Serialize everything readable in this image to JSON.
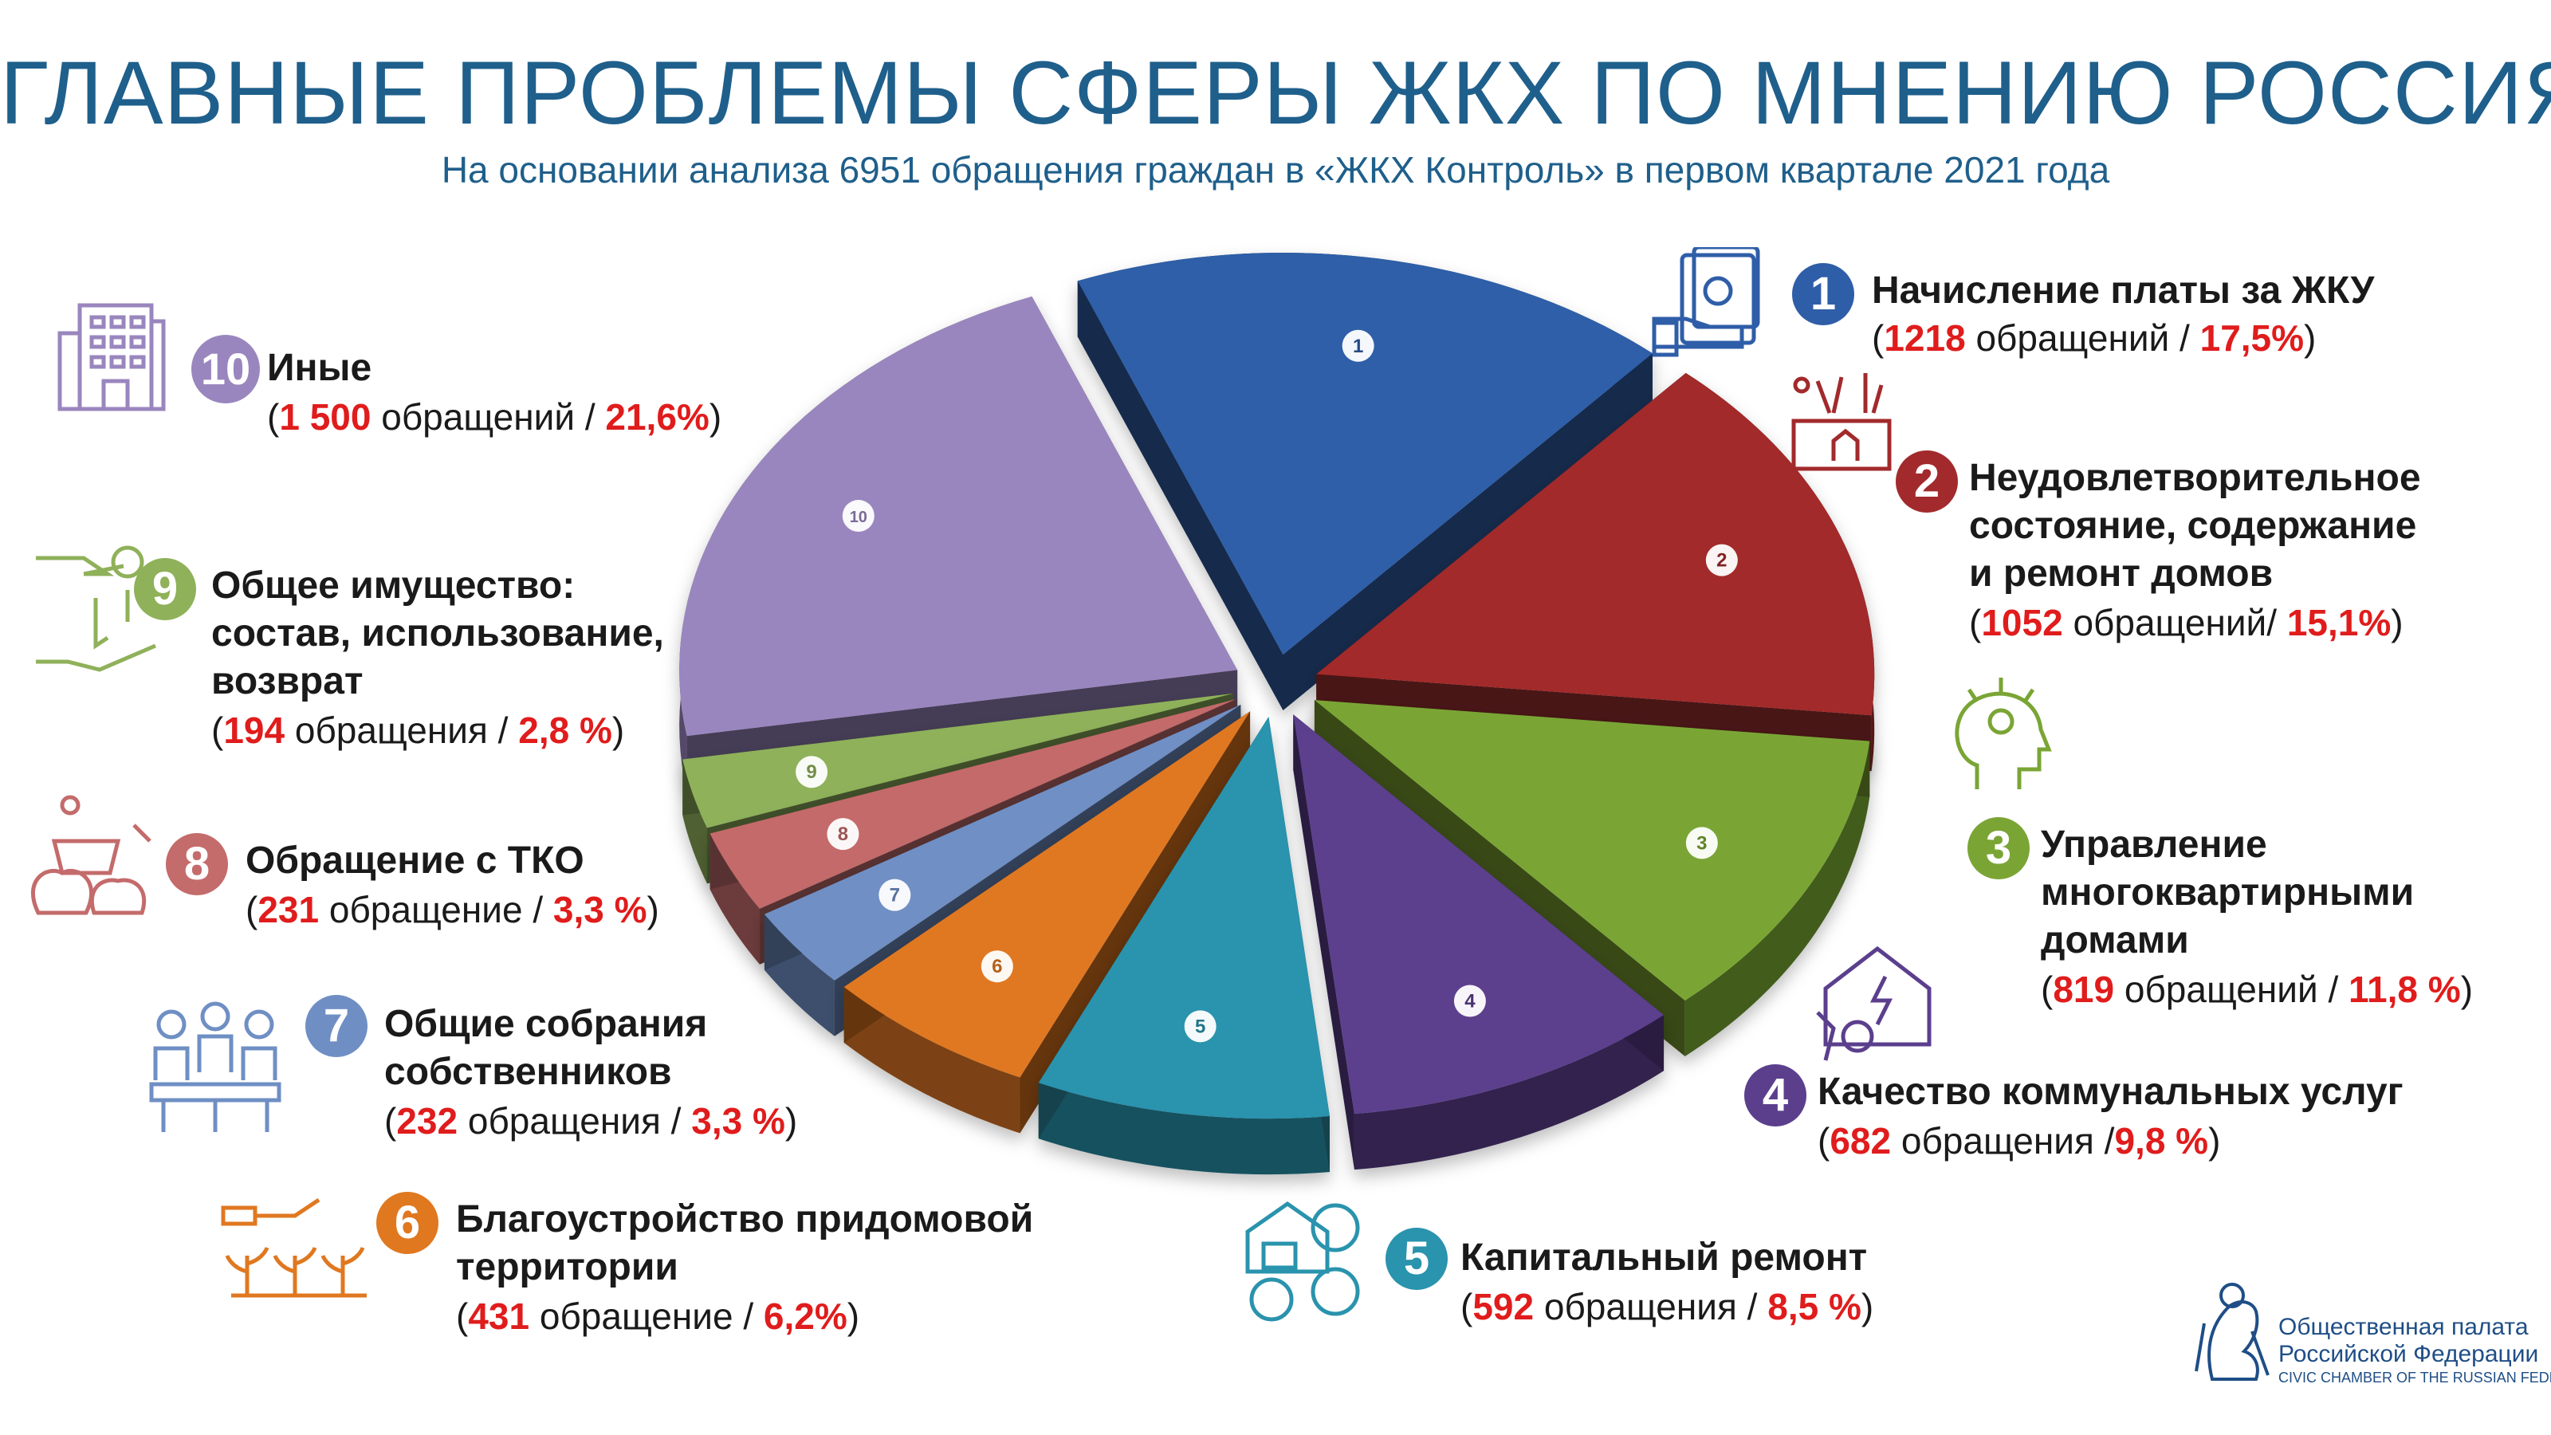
{
  "title": "ГЛАВНЫЕ ПРОБЛЕМЫ СФЕРЫ ЖКХ ПО МНЕНИЮ РОССИЯН",
  "subtitle": "На основании анализа 6951 обращения граждан в «ЖКХ Контроль» в первом квартале 2021 года",
  "chart_data": {
    "type": "pie",
    "title": "ГЛАВНЫЕ ПРОБЛЕМЫ СФЕРЫ ЖКХ ПО МНЕНИЮ РОССИЯН",
    "total_label": "6951",
    "categories": [
      "1",
      "2",
      "3",
      "4",
      "5",
      "6",
      "7",
      "8",
      "9",
      "10"
    ],
    "values": [
      17.5,
      15.1,
      11.8,
      9.8,
      8.5,
      6.2,
      3.3,
      3.3,
      2.8,
      21.6
    ],
    "counts": [
      1218,
      1052,
      819,
      682,
      592,
      431,
      232,
      231,
      194,
      1500
    ],
    "colors": [
      "#2f5ea8",
      "#a22a2c",
      "#7aa535",
      "#5b3f8d",
      "#2a93ad",
      "#e07820",
      "#6f8fc4",
      "#c46b6b",
      "#8fb15a",
      "#9a86be"
    ],
    "legend": "around"
  },
  "items": [
    {
      "num": "1",
      "title_lines": [
        "Начисление платы за ЖКУ"
      ],
      "count": "1218",
      "count_word": "обращений",
      "sep": " / ",
      "pct": "17,5%",
      "color": "#2f5ea8"
    },
    {
      "num": "2",
      "title_lines": [
        "Неудовлетворительное",
        "состояние, содержание",
        "и ремонт домов"
      ],
      "count": "1052",
      "count_word": "обращений",
      "sep": "/ ",
      "pct": "15,1%",
      "color": "#a22a2c"
    },
    {
      "num": "3",
      "title_lines": [
        "Управление",
        "многоквартирными",
        "домами"
      ],
      "count": "819",
      "count_word": "обращений",
      "sep": " / ",
      "pct": "11,8 %",
      "color": "#7aa535"
    },
    {
      "num": "4",
      "title_lines": [
        "Качество коммунальных услуг"
      ],
      "count": "682",
      "count_word": "обращения",
      "sep": " /",
      "pct": "9,8 %",
      "color": "#5b3f8d"
    },
    {
      "num": "5",
      "title_lines": [
        "Капитальный ремонт"
      ],
      "count": "592",
      "count_word": "обращения",
      "sep": " / ",
      "pct": "8,5 %",
      "color": "#2a93ad"
    },
    {
      "num": "6",
      "title_lines": [
        "Благоустройство придомовой",
        "территории"
      ],
      "count": "431",
      "count_word": "обращение",
      "sep": " / ",
      "pct": "6,2%",
      "color": "#e07820"
    },
    {
      "num": "7",
      "title_lines": [
        "Общие собрания",
        "собственников"
      ],
      "count": "232",
      "count_word": "обращения",
      "sep": " / ",
      "pct": "3,3 %",
      "color": "#6f8fc4"
    },
    {
      "num": "8",
      "title_lines": [
        "Обращение с ТКО"
      ],
      "count": "231",
      "count_word": "обращение",
      "sep": " / ",
      "pct": "3,3 %",
      "color": "#c46b6b"
    },
    {
      "num": "9",
      "title_lines": [
        "Общее имущество:",
        "состав, использование,",
        "возврат"
      ],
      "count": "194",
      "count_word": "обращения",
      "sep": " / ",
      "pct": "2,8 %",
      "color": "#8fb15a"
    },
    {
      "num": "10",
      "title_lines": [
        "Иные"
      ],
      "count": "1 500",
      "count_word": "обращений",
      "sep": " / ",
      "pct": "21,6%",
      "color": "#9a86be"
    }
  ],
  "logo": {
    "line1": "Общественная палата",
    "line2": "Российской Федерации",
    "line3": "CIVIC CHAMBER OF THE RUSSIAN FEDERATION"
  }
}
